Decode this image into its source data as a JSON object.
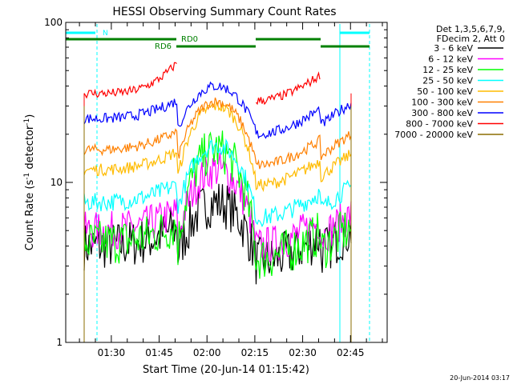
{
  "chart_data": {
    "type": "line",
    "title": "HESSI Observing Summary Count Rates",
    "xlabel": "Start Time (20-Jun-14 01:15:42)",
    "ylabel_main": "Count Rate (s",
    "ylabel_sup1": "-1",
    "ylabel_mid": " detector",
    "ylabel_sup2": "-1",
    "ylabel_end": ")",
    "y_scale": "log",
    "ylim": [
      1,
      100
    ],
    "xlim": [
      82,
      483
    ],
    "y_ticks": [
      {
        "value": 1,
        "label": "1"
      },
      {
        "value": 10,
        "label": "10"
      },
      {
        "value": 100,
        "label": "100"
      }
    ],
    "x_ticks": [
      {
        "minute": 90,
        "label": "01:30"
      },
      {
        "minute": 105,
        "label": "01:45"
      },
      {
        "minute": 120,
        "label": "02:00"
      },
      {
        "minute": 135,
        "label": "02:15"
      },
      {
        "minute": 150,
        "label": "02:30"
      },
      {
        "minute": 165,
        "label": "02:45"
      }
    ],
    "x_domain_minutes": [
      75.7,
      176.5
    ],
    "legend": {
      "header_line1": "Det 1,3,5,6,7,9,",
      "header_line2": "FDecim 2, Att 0",
      "placement": "right"
    },
    "series": [
      {
        "name": "3 - 6 keV",
        "color": "#000000"
      },
      {
        "name": "6 - 12 keV",
        "color": "#ff00ff"
      },
      {
        "name": "12 - 25 keV",
        "color": "#00ff00"
      },
      {
        "name": "25 - 50 keV",
        "color": "#00ffff"
      },
      {
        "name": "50 - 100 keV",
        "color": "#ffbb00"
      },
      {
        "name": "100 - 300 keV",
        "color": "#ff8000"
      },
      {
        "name": "300 - 800 keV",
        "color": "#0000ff"
      },
      {
        "name": "800 - 7000 keV",
        "color": "#ff0000"
      },
      {
        "name": "7000 - 20000 keV",
        "color": "#8b6d00"
      }
    ],
    "annotations": {
      "night_label": "N",
      "rd0_label": "RD0",
      "rd6_label": "RD6",
      "night_color": "#00ffff",
      "rd_color": "#008000"
    },
    "footer_date": "20-Jun-2014 03:17"
  }
}
